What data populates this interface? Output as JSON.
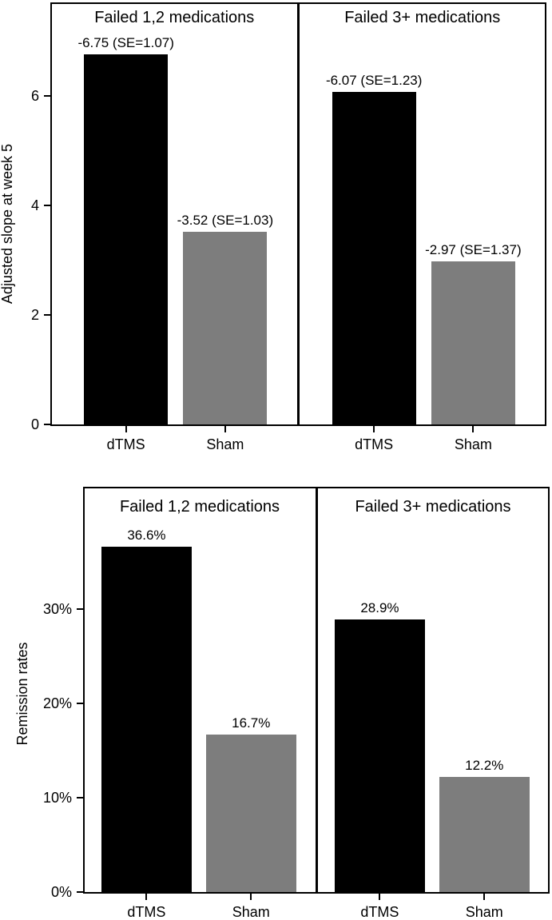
{
  "figure": {
    "background": "#ffffff",
    "text_color": "#000000",
    "bar_colors": {
      "dTMS": "#000000",
      "Sham": "#7d7d7d"
    }
  },
  "chart_data": [
    {
      "type": "bar",
      "title": "",
      "ylabel": "Adjusted slope at week 5",
      "xlabel": "",
      "ylim": [
        0,
        7.67
      ],
      "grid": "off",
      "legend": "none",
      "ytick_values": [
        0,
        2,
        4,
        6
      ],
      "ytick_labels": [
        "0",
        "2",
        "4",
        "6"
      ],
      "colors": [
        "#000000",
        "#7d7d7d"
      ],
      "panels": [
        {
          "title": "Failed 1,2 medications",
          "categories": [
            "dTMS",
            "Sham"
          ],
          "values": [
            6.75,
            3.52
          ],
          "value_labels": [
            "-6.75 (SE=1.07)",
            "-3.52 (SE=1.03)"
          ]
        },
        {
          "title": "Failed 3+ medications",
          "categories": [
            "dTMS",
            "Sham"
          ],
          "values": [
            6.07,
            2.97
          ],
          "value_labels": [
            "-6.07 (SE=1.23)",
            "-2.97 (SE=1.37)"
          ]
        }
      ]
    },
    {
      "type": "bar",
      "title": "",
      "ylabel": "Remission rates",
      "xlabel": "",
      "ylim": [
        0,
        42.8
      ],
      "grid": "off",
      "legend": "none",
      "ytick_values": [
        0,
        10,
        20,
        30
      ],
      "ytick_labels": [
        "0%",
        "10%",
        "20%",
        "30%"
      ],
      "colors": [
        "#000000",
        "#7d7d7d"
      ],
      "panels": [
        {
          "title": "Failed 1,2 medications",
          "categories": [
            "dTMS",
            "Sham"
          ],
          "values": [
            36.6,
            16.7
          ],
          "value_labels": [
            "36.6%",
            "16.7%"
          ]
        },
        {
          "title": "Failed 3+ medications",
          "categories": [
            "dTMS",
            "Sham"
          ],
          "values": [
            28.9,
            12.2
          ],
          "value_labels": [
            "28.9%",
            "12.2%"
          ]
        }
      ]
    }
  ]
}
